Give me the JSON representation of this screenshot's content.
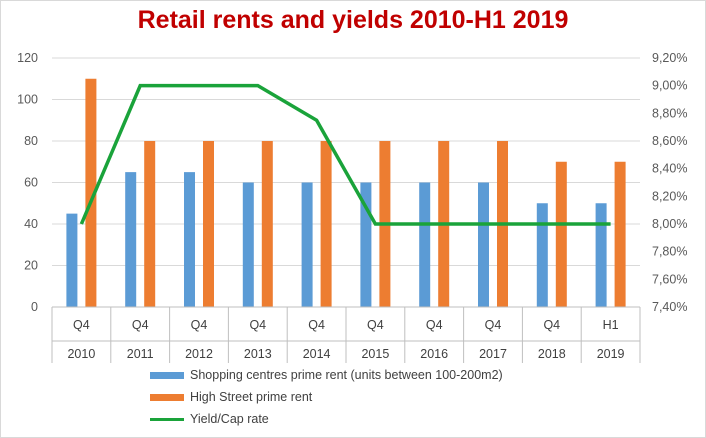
{
  "chart_data": {
    "type": "bar+line",
    "title": "Retail rents and yields 2010-H1 2019",
    "categories": [
      {
        "period": "Q4",
        "year": "2010"
      },
      {
        "period": "Q4",
        "year": "2011"
      },
      {
        "period": "Q4",
        "year": "2012"
      },
      {
        "period": "Q4",
        "year": "2013"
      },
      {
        "period": "Q4",
        "year": "2014"
      },
      {
        "period": "Q4",
        "year": "2015"
      },
      {
        "period": "Q4",
        "year": "2016"
      },
      {
        "period": "Q4",
        "year": "2017"
      },
      {
        "period": "Q4",
        "year": "2018"
      },
      {
        "period": "H1",
        "year": "2019"
      }
    ],
    "y_left": {
      "min": 0,
      "max": 120,
      "ticks": [
        "0",
        "20",
        "40",
        "60",
        "80",
        "100",
        "120"
      ]
    },
    "y_right": {
      "min": 7.4,
      "max": 9.2,
      "ticks": [
        "7,40%",
        "7,60%",
        "7,80%",
        "8,00%",
        "8,20%",
        "8,40%",
        "8,60%",
        "8,80%",
        "9,00%",
        "9,20%"
      ]
    },
    "series": [
      {
        "name": "Shopping centres prime rent (units between 100-200m2)",
        "type": "bar",
        "axis": "left",
        "color": "#5b9bd5",
        "values": [
          45,
          65,
          65,
          60,
          60,
          60,
          60,
          60,
          50,
          50
        ]
      },
      {
        "name": "High Street prime rent",
        "type": "bar",
        "axis": "left",
        "color": "#ed7d31",
        "values": [
          110,
          80,
          80,
          80,
          80,
          80,
          80,
          80,
          70,
          70
        ]
      },
      {
        "name": "Yield/Cap rate",
        "type": "line",
        "axis": "right",
        "color": "#1aa33a",
        "values": [
          8.0,
          9.0,
          9.0,
          9.0,
          8.75,
          8.0,
          8.0,
          8.0,
          8.0,
          8.0
        ]
      }
    ],
    "grid": true,
    "legend_position": "bottom"
  }
}
